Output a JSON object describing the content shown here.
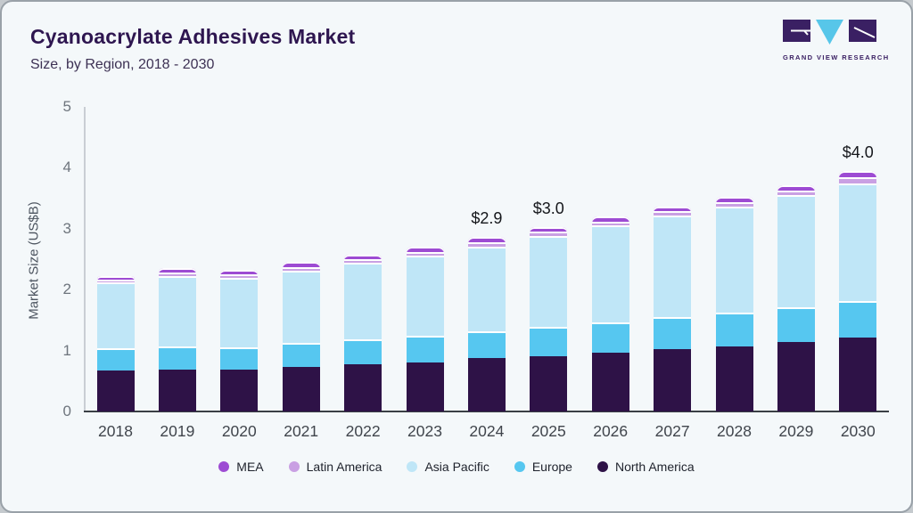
{
  "header": {
    "title": "Cyanoacrylate Adhesives Market",
    "subtitle": "Size, by Region, 2018 - 2030"
  },
  "logo": {
    "name": "Grand View Research",
    "text": "GRAND VIEW RESEARCH",
    "colors": {
      "block": "#3a2063",
      "triangle": "#57c6e9"
    }
  },
  "chart_data": {
    "type": "bar",
    "stacked": true,
    "title": "Cyanoacrylate Adhesives Market Size, by Region, 2018 - 2030",
    "xlabel": "",
    "ylabel": "Market Size (US$B)",
    "ylim": [
      0,
      5
    ],
    "yticks": [
      0,
      1,
      2,
      3,
      4,
      5
    ],
    "grid": false,
    "legend_position": "bottom",
    "categories": [
      "2018",
      "2019",
      "2020",
      "2021",
      "2022",
      "2023",
      "2024",
      "2025",
      "2026",
      "2027",
      "2028",
      "2029",
      "2030"
    ],
    "series": [
      {
        "name": "North America",
        "color": "#2e1247",
        "values": [
          0.67,
          0.69,
          0.69,
          0.73,
          0.77,
          0.81,
          0.87,
          0.91,
          0.97,
          1.03,
          1.07,
          1.14,
          1.22
        ]
      },
      {
        "name": "Europe",
        "color": "#56c7f0",
        "values": [
          0.37,
          0.38,
          0.37,
          0.39,
          0.42,
          0.43,
          0.44,
          0.48,
          0.49,
          0.52,
          0.55,
          0.57,
          0.59
        ]
      },
      {
        "name": "Asia Pacific",
        "color": "#bfe6f7",
        "values": [
          1.08,
          1.15,
          1.13,
          1.19,
          1.25,
          1.32,
          1.4,
          1.49,
          1.59,
          1.67,
          1.75,
          1.84,
          1.94
        ]
      },
      {
        "name": "Latin America",
        "color": "#c9a0e3",
        "values": [
          0.05,
          0.06,
          0.06,
          0.06,
          0.06,
          0.06,
          0.07,
          0.07,
          0.07,
          0.07,
          0.07,
          0.08,
          0.09
        ]
      },
      {
        "name": "MEA",
        "color": "#9d4bd3",
        "values": [
          0.06,
          0.07,
          0.07,
          0.08,
          0.08,
          0.08,
          0.09,
          0.08,
          0.08,
          0.08,
          0.08,
          0.09,
          0.11
        ]
      }
    ],
    "totals": [
      2.23,
      2.35,
      2.32,
      2.45,
      2.58,
      2.7,
      2.87,
      3.03,
      3.2,
      3.37,
      3.52,
      3.72,
      3.95
    ],
    "bar_labels": {
      "2024": "$2.9",
      "2025": "$3.0",
      "2030": "$4.0"
    },
    "legend_order": [
      "MEA",
      "Latin America",
      "Asia Pacific",
      "Europe",
      "North America"
    ]
  }
}
